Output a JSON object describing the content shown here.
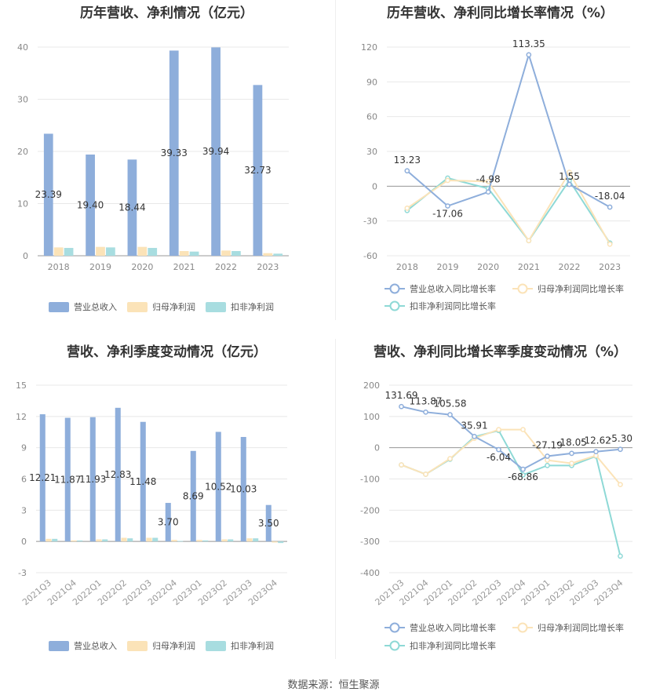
{
  "footer": {
    "source": "数据来源：恒生聚源"
  },
  "colors": {
    "revenue": "#8eaedb",
    "net_profit": "#fbe3b8",
    "deducted": "#a8dde0",
    "line_revenue": "#8eaedb",
    "line_net": "#fbe3b8",
    "line_deducted": "#8ed9d6"
  },
  "chart_data": [
    {
      "id": "annual_bar",
      "type": "bar",
      "title": "历年营收、净利情况（亿元）",
      "categories": [
        "2018",
        "2019",
        "2020",
        "2021",
        "2022",
        "2023"
      ],
      "ylim": [
        0,
        40
      ],
      "yticks": [
        "0",
        "10",
        "20",
        "30",
        "40"
      ],
      "series": [
        {
          "name": "营业总收入",
          "values": [
            23.39,
            19.4,
            18.44,
            39.33,
            39.94,
            32.73
          ],
          "labels": [
            "23.39",
            "19.40",
            "18.44",
            "39.33",
            "39.94",
            "32.73"
          ]
        },
        {
          "name": "归母净利润",
          "values": [
            1.6,
            1.7,
            1.7,
            0.9,
            1.0,
            0.5
          ]
        },
        {
          "name": "扣非净利润",
          "values": [
            1.5,
            1.6,
            1.5,
            0.8,
            0.9,
            0.4
          ]
        }
      ],
      "grid": true,
      "legend": "bottom"
    },
    {
      "id": "annual_line",
      "type": "line",
      "title": "历年营收、净利同比增长率情况（%）",
      "categories": [
        "2018",
        "2019",
        "2020",
        "2021",
        "2022",
        "2023"
      ],
      "ylim": [
        -60,
        120
      ],
      "yticks": [
        "-60",
        "-30",
        "0",
        "30",
        "60",
        "90",
        "120"
      ],
      "series": [
        {
          "name": "营业总收入同比增长率",
          "values": [
            13.23,
            -17.06,
            -4.98,
            113.35,
            1.55,
            -18.04
          ],
          "labels": [
            "13.23",
            "-17.06",
            "-4.98",
            "113.35",
            "1.55",
            "-18.04"
          ]
        },
        {
          "name": "归母净利润同比增长率",
          "values": [
            -19,
            5,
            4,
            -47,
            12,
            -50
          ]
        },
        {
          "name": "扣非净利润同比增长率",
          "values": [
            -21,
            7,
            -2,
            -47,
            5,
            -49
          ]
        }
      ],
      "grid": true,
      "legend": "bottom"
    },
    {
      "id": "quarter_bar",
      "type": "bar",
      "title": "营收、净利季度变动情况（亿元）",
      "categories": [
        "2021Q3",
        "2021Q4",
        "2022Q1",
        "2022Q2",
        "2022Q3",
        "2022Q4",
        "2023Q1",
        "2023Q2",
        "2023Q3",
        "2023Q4"
      ],
      "ylim": [
        -3,
        15
      ],
      "yticks": [
        "-3",
        "0",
        "3",
        "6",
        "9",
        "12",
        "15"
      ],
      "series": [
        {
          "name": "营业总收入",
          "values": [
            12.21,
            11.87,
            11.93,
            12.83,
            11.48,
            3.7,
            8.69,
            10.52,
            10.03,
            3.5
          ],
          "labels": [
            "12.21",
            "11.87",
            "11.93",
            "12.83",
            "11.48",
            "3.70",
            "8.69",
            "10.52",
            "10.03",
            "3.50"
          ]
        },
        {
          "name": "归母净利润",
          "values": [
            0.25,
            0.1,
            0.2,
            0.35,
            0.35,
            0.15,
            0.15,
            0.2,
            0.3,
            -0.1
          ]
        },
        {
          "name": "扣非净利润",
          "values": [
            0.25,
            0.1,
            0.2,
            0.3,
            0.35,
            0.05,
            0.1,
            0.2,
            0.3,
            -0.15
          ]
        }
      ],
      "grid": true,
      "legend": "bottom"
    },
    {
      "id": "quarter_line",
      "type": "line",
      "title": "营收、净利同比增长率季度变动情况（%）",
      "categories": [
        "2021Q3",
        "2021Q4",
        "2022Q1",
        "2022Q2",
        "2022Q3",
        "2022Q4",
        "2023Q1",
        "2023Q2",
        "2023Q3",
        "2023Q4"
      ],
      "ylim": [
        -400,
        200
      ],
      "yticks": [
        "-400",
        "-300",
        "-200",
        "-100",
        "0",
        "100",
        "200"
      ],
      "series": [
        {
          "name": "营业总收入同比增长率",
          "values": [
            131.69,
            113.87,
            105.58,
            35.91,
            -6.04,
            -68.86,
            -27.19,
            -18.05,
            -12.62,
            -5.3
          ],
          "labels": [
            "131.69",
            "113.87",
            "105.58",
            "35.91",
            "-6.04",
            "-68.86",
            "-27.19",
            "-18.05",
            "-12.62",
            "-5.30"
          ]
        },
        {
          "name": "归母净利润同比增长率",
          "values": [
            -55,
            -85,
            -35,
            30,
            58,
            58,
            -40,
            -50,
            -25,
            -118
          ]
        },
        {
          "name": "扣非净利润同比增长率",
          "values": [
            -55,
            -85,
            -37,
            35,
            55,
            -87,
            -57,
            -57,
            -27,
            -347
          ]
        }
      ],
      "grid": true,
      "legend": "bottom"
    }
  ]
}
